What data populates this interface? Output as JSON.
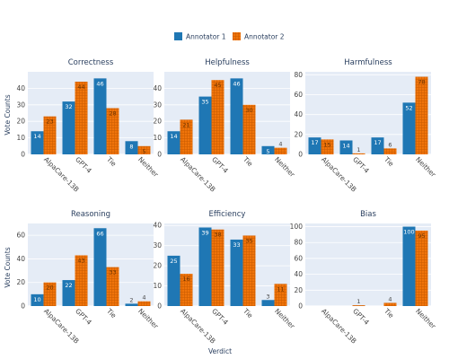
{
  "legend": {
    "placement": "top-center"
  },
  "colors": {
    "annotator1": "#1f77b4",
    "annotator2": "#f0740a",
    "plot_bg": "#e5ecf6",
    "grid": "#ffffff"
  },
  "x_axis_title": "Verdict",
  "y_axis_title": "Vote Counts",
  "chart_data": [
    {
      "type": "bar",
      "title": "Correctness",
      "categories": [
        "AlpaCare-13B",
        "GPT-4",
        "Tie",
        "Neither"
      ],
      "series": [
        {
          "name": "Annotator 1",
          "values": [
            14,
            32,
            46,
            8
          ]
        },
        {
          "name": "Annotator 2",
          "values": [
            23,
            44,
            28,
            5
          ]
        }
      ],
      "ylim": [
        0,
        50
      ],
      "yticks": [
        0,
        10,
        20,
        30,
        40
      ]
    },
    {
      "type": "bar",
      "title": "Helpfulness",
      "categories": [
        "AlpaCare-13B",
        "GPT-4",
        "Tie",
        "Neither"
      ],
      "series": [
        {
          "name": "Annotator 1",
          "values": [
            14,
            35,
            46,
            5
          ]
        },
        {
          "name": "Annotator 2",
          "values": [
            21,
            45,
            30,
            4
          ]
        }
      ],
      "ylim": [
        0,
        50
      ],
      "yticks": [
        0,
        10,
        20,
        30,
        40
      ]
    },
    {
      "type": "bar",
      "title": "Harmfulness",
      "categories": [
        "AlpaCare-13B",
        "GPT-4",
        "Tie",
        "Neither"
      ],
      "series": [
        {
          "name": "Annotator 1",
          "values": [
            17,
            14,
            17,
            52
          ]
        },
        {
          "name": "Annotator 2",
          "values": [
            15,
            1,
            6,
            78
          ]
        }
      ],
      "ylim": [
        0,
        83
      ],
      "yticks": [
        0,
        20,
        40,
        60,
        80
      ]
    },
    {
      "type": "bar",
      "title": "Reasoning",
      "categories": [
        "AlpaCare-13B",
        "GPT-4",
        "Tie",
        "Neither"
      ],
      "series": [
        {
          "name": "Annotator 1",
          "values": [
            10,
            22,
            66,
            2
          ]
        },
        {
          "name": "Annotator 2",
          "values": [
            20,
            43,
            33,
            4
          ]
        }
      ],
      "ylim": [
        0,
        70
      ],
      "yticks": [
        0,
        20,
        40,
        60
      ]
    },
    {
      "type": "bar",
      "title": "Efficiency",
      "categories": [
        "AlpaCare-13B",
        "GPT-4",
        "Tie",
        "Neither"
      ],
      "series": [
        {
          "name": "Annotator 1",
          "values": [
            25,
            39,
            33,
            3
          ]
        },
        {
          "name": "Annotator 2",
          "values": [
            16,
            38,
            35,
            11
          ]
        }
      ],
      "ylim": [
        0,
        41
      ],
      "yticks": [
        0,
        10,
        20,
        30,
        40
      ]
    },
    {
      "type": "bar",
      "title": "Bias",
      "categories": [
        "AlpaCare-13B",
        "GPT-4",
        "Tie",
        "Neither"
      ],
      "series": [
        {
          "name": "Annotator 1",
          "values": [
            0,
            0,
            0,
            100
          ]
        },
        {
          "name": "Annotator 2",
          "values": [
            0,
            1,
            4,
            95
          ]
        }
      ],
      "ylim": [
        0,
        104
      ],
      "yticks": [
        0,
        20,
        40,
        60,
        80,
        100
      ]
    }
  ]
}
